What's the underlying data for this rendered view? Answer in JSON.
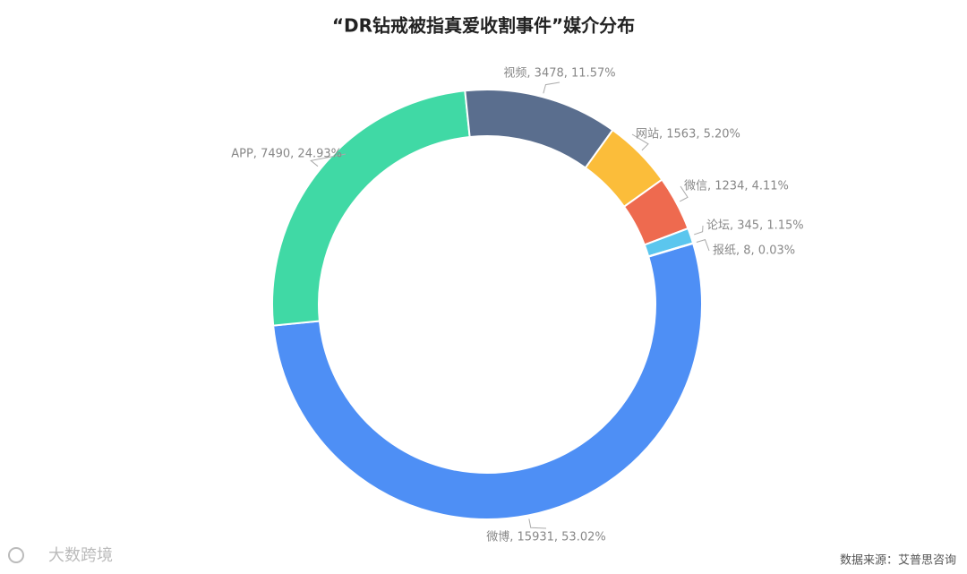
{
  "chart_data": {
    "type": "donut",
    "title": "“DR钻戒被指真爱收割事件”媒介分布",
    "values": [
      15931,
      7490,
      3478,
      1563,
      1234,
      345,
      8
    ],
    "value_labels": [
      "微博, 15931, 53.02%",
      "APP, 7490, 24.93%",
      "视频, 3478, 11.57%",
      "网站, 1563, 5.20%",
      "微信, 1234, 4.11%",
      "论坛, 345, 1.15%",
      "报纸, 8, 0.03%"
    ],
    "colors": [
      "#4e8ff5",
      "#40d9a5",
      "#5a6e8e",
      "#fbbd3a",
      "#ee6a4f",
      "#5bc6ee",
      "#9b6fd0"
    ]
  },
  "footer": {
    "source": "数据来源：艾普思咨询",
    "logo_text": "大数跨境"
  }
}
